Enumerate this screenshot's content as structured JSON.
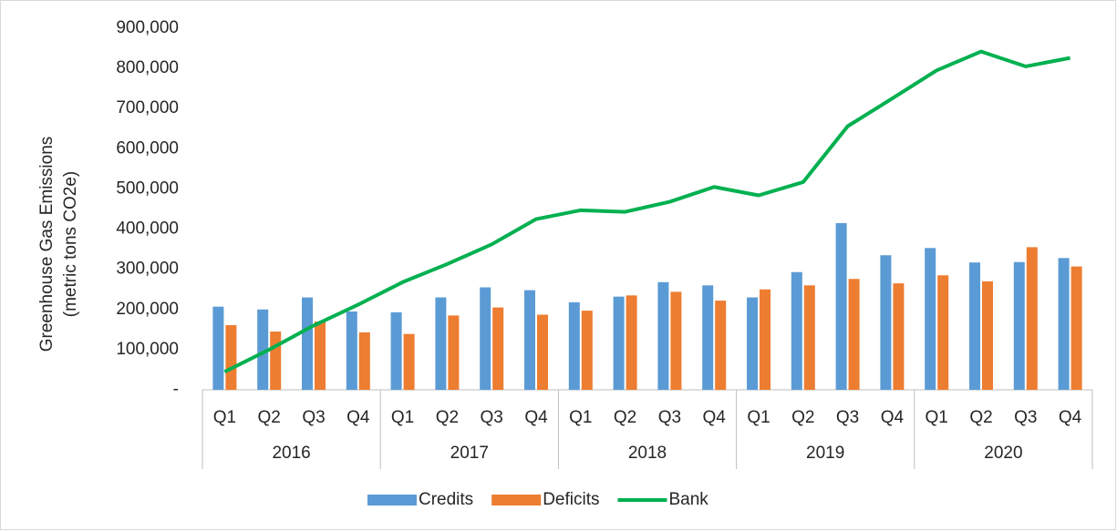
{
  "chart_data": {
    "type": "bar_line",
    "ylabel": [
      "Greenhouse Gas Emissions",
      "(metric tons CO2e)"
    ],
    "categories": [
      "Q1",
      "Q2",
      "Q3",
      "Q4",
      "Q1",
      "Q2",
      "Q3",
      "Q4",
      "Q1",
      "Q2",
      "Q3",
      "Q4",
      "Q1",
      "Q2",
      "Q3",
      "Q4",
      "Q1",
      "Q2",
      "Q3",
      "Q4"
    ],
    "category_groups": [
      "2016",
      "2017",
      "2018",
      "2019",
      "2020"
    ],
    "series": [
      {
        "name": "Credits",
        "type": "bar",
        "color": "#5b9bd5",
        "values": [
          207000,
          200000,
          230000,
          195000,
          193000,
          230000,
          255000,
          248000,
          218000,
          232000,
          268000,
          260000,
          230000,
          293000,
          415000,
          335000,
          353000,
          317000,
          318000,
          328000
        ]
      },
      {
        "name": "Deficits",
        "type": "bar",
        "color": "#ed7d31",
        "values": [
          161000,
          145000,
          170000,
          143000,
          139000,
          185000,
          205000,
          187000,
          197000,
          235000,
          244000,
          222000,
          250000,
          260000,
          276000,
          265000,
          285000,
          270000,
          355000,
          307000
        ]
      },
      {
        "name": "Bank",
        "type": "line",
        "color": "#00b050",
        "values": [
          45000,
          100000,
          160000,
          212000,
          268000,
          313000,
          362000,
          425000,
          447000,
          443000,
          468000,
          505000,
          484000,
          517000,
          656000,
          725000,
          795000,
          842000,
          805000,
          826000
        ]
      }
    ],
    "ylim": [
      0,
      900000
    ],
    "yticks": [
      {
        "value": 0,
        "label": "-"
      },
      {
        "value": 100000,
        "label": "100,000"
      },
      {
        "value": 200000,
        "label": "200,000"
      },
      {
        "value": 300000,
        "label": "300,000"
      },
      {
        "value": 400000,
        "label": "400,000"
      },
      {
        "value": 500000,
        "label": "500,000"
      },
      {
        "value": 600000,
        "label": "600,000"
      },
      {
        "value": 700000,
        "label": "700,000"
      },
      {
        "value": 800000,
        "label": "800,000"
      },
      {
        "value": 900000,
        "label": "900,000"
      }
    ],
    "grid": false,
    "legend": "bottom"
  }
}
